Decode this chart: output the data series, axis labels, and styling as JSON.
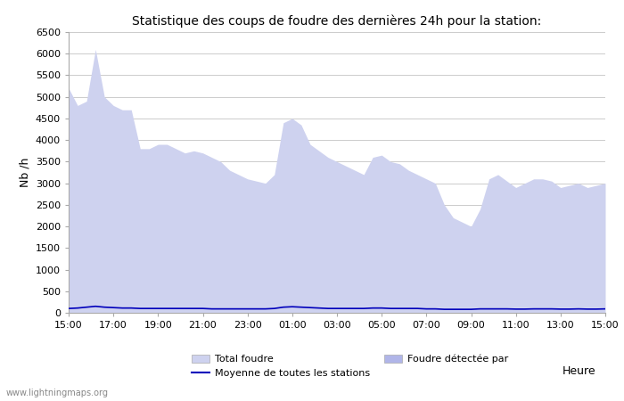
{
  "title": "Statistique des coups de foudre des dernières 24h pour la station:",
  "ylabel": "Nb /h",
  "xlabel_right": "Heure",
  "watermark": "www.lightningmaps.org",
  "legend_items": [
    "Total foudre",
    "Foudre détectée par",
    "Moyenne de toutes les stations"
  ],
  "ylim": [
    0,
    6500
  ],
  "yticks": [
    0,
    500,
    1000,
    1500,
    2000,
    2500,
    3000,
    3500,
    4000,
    4500,
    5000,
    5500,
    6000,
    6500
  ],
  "xtick_labels": [
    "15:00",
    "17:00",
    "19:00",
    "21:00",
    "23:00",
    "01:00",
    "03:00",
    "05:00",
    "07:00",
    "09:00",
    "11:00",
    "13:00",
    "15:00"
  ],
  "bg_color": "#ffffff",
  "fill_color_total": "#ced2ef",
  "fill_color_detected": "#b0b5e8",
  "line_color_moyenne": "#0000bb",
  "total_foudre": [
    5200,
    4800,
    4900,
    6100,
    5000,
    4800,
    4700,
    4700,
    3800,
    3800,
    3900,
    3900,
    3800,
    3700,
    3750,
    3700,
    3600,
    3500,
    3300,
    3200,
    3100,
    3050,
    3000,
    3200,
    4400,
    4500,
    4350,
    3900,
    3750,
    3600,
    3500,
    3400,
    3300,
    3200,
    3600,
    3650,
    3500,
    3450,
    3300,
    3200,
    3100,
    3000,
    2500,
    2200,
    2100,
    2000,
    2400,
    3100,
    3200,
    3050,
    2900,
    3000,
    3100,
    3100,
    3050,
    2900,
    2950,
    3000,
    2900,
    2950,
    3000
  ],
  "moyenne": [
    100,
    110,
    130,
    150,
    130,
    120,
    110,
    110,
    100,
    100,
    100,
    100,
    100,
    100,
    100,
    100,
    90,
    90,
    90,
    90,
    90,
    90,
    90,
    100,
    130,
    140,
    130,
    120,
    110,
    100,
    100,
    100,
    100,
    100,
    110,
    110,
    100,
    100,
    100,
    100,
    90,
    90,
    80,
    80,
    80,
    80,
    90,
    90,
    90,
    90,
    85,
    85,
    90,
    90,
    90,
    85,
    85,
    90,
    85,
    85,
    90
  ]
}
